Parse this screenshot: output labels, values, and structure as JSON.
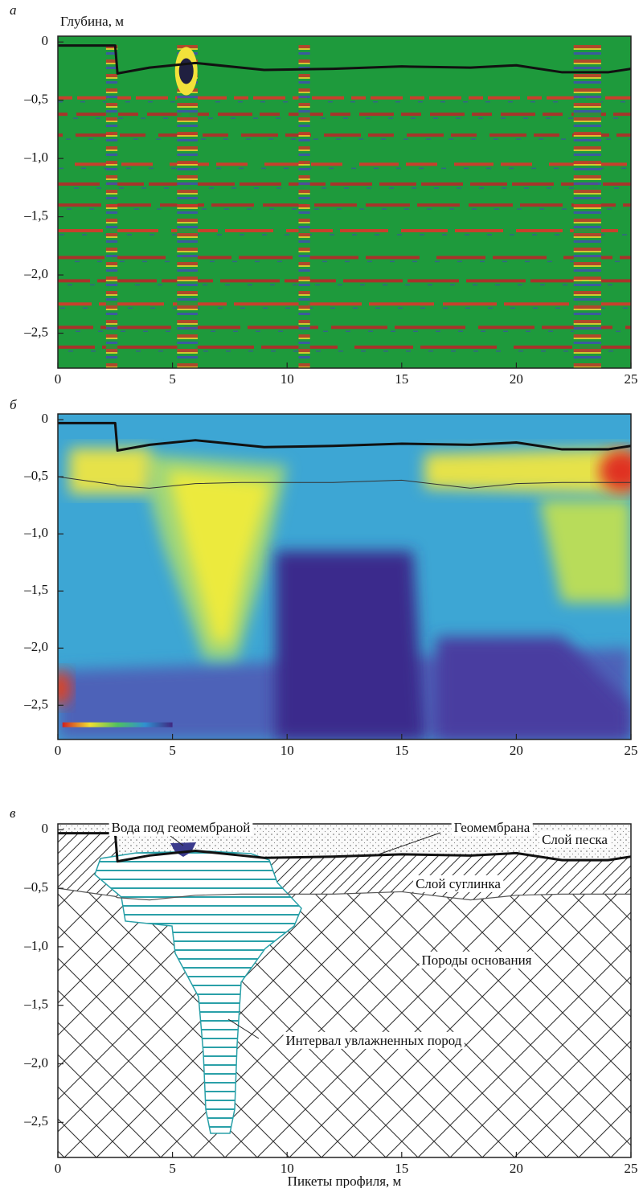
{
  "chart_data": [
    {
      "type": "radargram",
      "panel_label": "а",
      "y_label": "Глубина, м",
      "xlim": [
        0,
        25
      ],
      "ylim": [
        -2.8,
        0.05
      ],
      "xticks": [
        0,
        5,
        10,
        15,
        20,
        25
      ],
      "yticks": [
        0,
        {
          "value": -0.5,
          "label": "–0,5"
        },
        {
          "value": -1.0,
          "label": "–1,0"
        },
        {
          "value": -1.5,
          "label": "–1,5"
        },
        {
          "value": -2.0,
          "label": "–2,0"
        },
        {
          "value": -2.5,
          "label": "–2,5"
        }
      ],
      "x": [
        0,
        2.5,
        2.6,
        4,
        6,
        8,
        9,
        12,
        15,
        18,
        20,
        22,
        24,
        25
      ],
      "series": [
        {
          "color": "#111111",
          "line_width": 3,
          "values": [
            -0.03,
            -0.03,
            -0.27,
            -0.22,
            -0.18,
            -0.22,
            -0.24,
            -0.23,
            -0.21,
            -0.22,
            -0.2,
            -0.26,
            -0.26,
            -0.23
          ]
        }
      ]
    },
    {
      "type": "resistivity",
      "panel_label": "б",
      "xlim": [
        0,
        25
      ],
      "ylim": [
        -2.8,
        0.05
      ],
      "xticks": [
        0,
        5,
        10,
        15,
        20,
        25
      ],
      "yticks": [
        0,
        {
          "value": -0.5,
          "label": "–0,5"
        },
        {
          "value": -1.0,
          "label": "–1,0"
        },
        {
          "value": -1.5,
          "label": "–1,5"
        },
        {
          "value": -2.0,
          "label": "–2,0"
        },
        {
          "value": -2.5,
          "label": "–2,5"
        }
      ],
      "x": [
        0,
        2.5,
        2.6,
        4,
        6,
        8,
        9,
        12,
        15,
        18,
        20,
        22,
        24,
        25
      ],
      "series": [
        {
          "color": "#111111",
          "line_width": 3,
          "values": [
            -0.03,
            -0.03,
            -0.27,
            -0.22,
            -0.18,
            -0.22,
            -0.24,
            -0.23,
            -0.21,
            -0.22,
            -0.2,
            -0.26,
            -0.26,
            -0.23
          ]
        },
        {
          "color": "#333333",
          "line_width": 1,
          "values": [
            -0.5,
            -0.57,
            -0.58,
            -0.6,
            -0.56,
            -0.55,
            -0.55,
            -0.55,
            -0.53,
            -0.6,
            -0.56,
            -0.55,
            -0.55,
            -0.55
          ]
        }
      ]
    },
    {
      "type": "section",
      "panel_label": "в",
      "x_label": "Пикеты профиля, м",
      "xlim": [
        0,
        25
      ],
      "ylim": [
        -2.8,
        0.05
      ],
      "xticks": [
        0,
        5,
        10,
        15,
        20,
        25
      ],
      "yticks": [
        0,
        {
          "value": -0.5,
          "label": "–0,5"
        },
        {
          "value": -1.0,
          "label": "–1,0"
        },
        {
          "value": -1.5,
          "label": "–1,5"
        },
        {
          "value": -2.0,
          "label": "–2,0"
        },
        {
          "value": -2.5,
          "label": "–2,5"
        }
      ],
      "x": [
        0,
        2.5,
        2.6,
        4,
        6,
        8,
        9,
        12,
        15,
        18,
        20,
        22,
        24,
        25
      ],
      "series": [
        {
          "color": "#111111",
          "line_width": 3,
          "values": [
            -0.03,
            -0.03,
            -0.27,
            -0.22,
            -0.18,
            -0.22,
            -0.24,
            -0.23,
            -0.21,
            -0.22,
            -0.2,
            -0.26,
            -0.26,
            -0.23
          ]
        },
        {
          "color": "#555555",
          "line_width": 1.2,
          "values": [
            -0.5,
            -0.57,
            -0.58,
            -0.6,
            -0.56,
            -0.55,
            -0.55,
            -0.55,
            -0.53,
            -0.6,
            -0.56,
            -0.55,
            -0.55,
            -0.55
          ]
        }
      ],
      "annotations": [
        "Вода под геомембраной",
        "Геомембрана",
        "Слой песка",
        "Слой суглинка",
        "Породы основания",
        "Интервал увлажненных пород"
      ]
    }
  ]
}
